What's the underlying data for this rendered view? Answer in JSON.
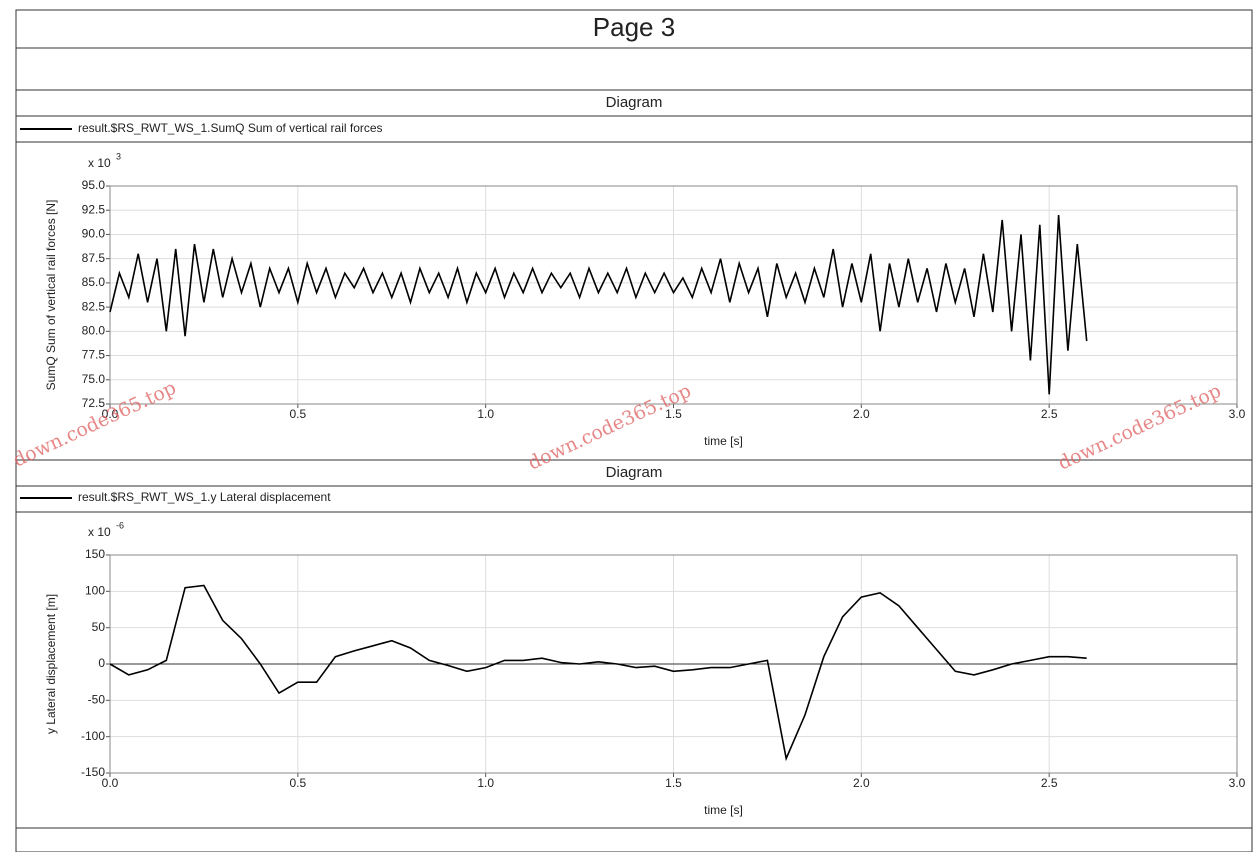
{
  "page": {
    "title": "Page 3",
    "watermarks": [
      "down.code365.top",
      "down.code365.top",
      "down.code365.top"
    ]
  },
  "chart_data": [
    {
      "type": "line",
      "header": "Diagram",
      "y_multiplier": "x 10",
      "y_exponent": "3",
      "xlabel": "time [s]",
      "ylabel": "SumQ Sum of vertical rail forces [N]",
      "x": [
        0,
        0.025,
        0.05,
        0.075,
        0.1,
        0.125,
        0.15,
        0.175,
        0.2,
        0.225,
        0.25,
        0.275,
        0.3,
        0.325,
        0.35,
        0.375,
        0.4,
        0.425,
        0.45,
        0.475,
        0.5,
        0.525,
        0.55,
        0.575,
        0.6,
        0.625,
        0.65,
        0.675,
        0.7,
        0.725,
        0.75,
        0.775,
        0.8,
        0.825,
        0.85,
        0.875,
        0.9,
        0.925,
        0.95,
        0.975,
        1.0,
        1.025,
        1.05,
        1.075,
        1.1,
        1.125,
        1.15,
        1.175,
        1.2,
        1.225,
        1.25,
        1.275,
        1.3,
        1.325,
        1.35,
        1.375,
        1.4,
        1.425,
        1.45,
        1.475,
        1.5,
        1.525,
        1.55,
        1.575,
        1.6,
        1.625,
        1.65,
        1.675,
        1.7,
        1.725,
        1.75,
        1.775,
        1.8,
        1.825,
        1.85,
        1.875,
        1.9,
        1.925,
        1.95,
        1.975,
        2.0,
        2.025,
        2.05,
        2.075,
        2.1,
        2.125,
        2.15,
        2.175,
        2.2,
        2.225,
        2.25,
        2.275,
        2.3,
        2.325,
        2.35,
        2.375,
        2.4,
        2.425,
        2.45,
        2.475,
        2.5,
        2.525,
        2.55,
        2.575,
        2.6
      ],
      "series": [
        {
          "name": "result.$RS_RWT_WS_1.SumQ Sum of vertical rail forces",
          "color": "#000000",
          "values": [
            82,
            86,
            83.5,
            88,
            83,
            87.5,
            80,
            88.5,
            79.5,
            89,
            83,
            88.5,
            83.5,
            87.5,
            84,
            87,
            82.5,
            86.5,
            84,
            86.5,
            83,
            87,
            84,
            86.5,
            83.5,
            86,
            84.5,
            86.5,
            84,
            86,
            83.5,
            86,
            83,
            86.5,
            84,
            86,
            83.5,
            86.5,
            83,
            86,
            84,
            86.5,
            83.5,
            86,
            84,
            86.5,
            84,
            86,
            84.5,
            86,
            83.5,
            86.5,
            84,
            86,
            84,
            86.5,
            83.5,
            86,
            84,
            86,
            84,
            85.5,
            83.5,
            86.5,
            84,
            87.5,
            83,
            87,
            84,
            86.5,
            81.5,
            87,
            83.5,
            86,
            83,
            86.5,
            83.5,
            88.5,
            82.5,
            87,
            83,
            88,
            80,
            87,
            82.5,
            87.5,
            83,
            86.5,
            82,
            87,
            83,
            86.5,
            81.5,
            88,
            82,
            91.5,
            80,
            90,
            77,
            91,
            73.5,
            92,
            78,
            89,
            79
          ]
        }
      ],
      "xlim": [
        0,
        3
      ],
      "ylim": [
        72.5,
        95
      ],
      "xticks": [
        {
          "value": 0,
          "label": "0.0"
        },
        0.5,
        {
          "value": 1,
          "label": "1.0"
        },
        1.5,
        {
          "value": 2,
          "label": "2.0"
        },
        2.5,
        {
          "value": 3,
          "label": "3.0"
        }
      ],
      "yticks": [
        {
          "value": 72.5,
          "label": "72.5"
        },
        {
          "value": 75,
          "label": "75.0"
        },
        77.5,
        {
          "value": 80,
          "label": "80.0"
        },
        82.5,
        {
          "value": 85,
          "label": "85.0"
        },
        87.5,
        {
          "value": 90,
          "label": "90.0"
        },
        92.5,
        {
          "value": 95,
          "label": "95.0"
        }
      ],
      "grid": true
    },
    {
      "type": "line",
      "header": "Diagram",
      "y_multiplier": "x 10",
      "y_exponent": "-6",
      "xlabel": "time [s]",
      "ylabel": "y Lateral displacement [m]",
      "x": [
        0,
        0.05,
        0.1,
        0.15,
        0.2,
        0.25,
        0.3,
        0.35,
        0.4,
        0.45,
        0.5,
        0.55,
        0.6,
        0.65,
        0.7,
        0.75,
        0.8,
        0.85,
        0.9,
        0.95,
        1.0,
        1.05,
        1.1,
        1.15,
        1.2,
        1.25,
        1.3,
        1.35,
        1.4,
        1.45,
        1.5,
        1.55,
        1.6,
        1.65,
        1.7,
        1.75,
        1.8,
        1.85,
        1.9,
        1.95,
        2.0,
        2.05,
        2.1,
        2.15,
        2.2,
        2.25,
        2.3,
        2.35,
        2.4,
        2.45,
        2.5,
        2.55,
        2.6
      ],
      "series": [
        {
          "name": "result.$RS_RWT_WS_1.y Lateral displacement",
          "color": "#000000",
          "values": [
            0,
            -15,
            -8,
            5,
            105,
            108,
            60,
            35,
            0,
            -40,
            -25,
            -25,
            10,
            18,
            25,
            32,
            22,
            5,
            -2,
            -10,
            -5,
            5,
            5,
            8,
            2,
            0,
            3,
            0,
            -5,
            -3,
            -10,
            -8,
            -5,
            -5,
            0,
            5,
            -130,
            -70,
            10,
            65,
            92,
            98,
            80,
            50,
            20,
            -10,
            -15,
            -8,
            0,
            5,
            10,
            10,
            8
          ]
        }
      ],
      "xlim": [
        0,
        3
      ],
      "ylim": [
        -150,
        150
      ],
      "xticks": [
        {
          "value": 0,
          "label": "0.0"
        },
        0.5,
        {
          "value": 1,
          "label": "1.0"
        },
        1.5,
        {
          "value": 2,
          "label": "2.0"
        },
        2.5,
        {
          "value": 3,
          "label": "3.0"
        }
      ],
      "yticks": [
        -150,
        -100,
        -50,
        0,
        50,
        100,
        150
      ],
      "grid": true
    }
  ]
}
